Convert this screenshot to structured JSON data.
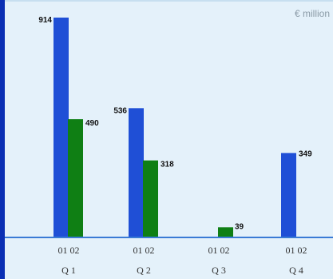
{
  "unit_label": "€ million",
  "chart_data": {
    "type": "bar",
    "categories": [
      "Q 1",
      "Q 2",
      "Q 3",
      "Q 4"
    ],
    "sub_labels": [
      "01 02",
      "01 02",
      "01 02",
      "01 02"
    ],
    "series": [
      {
        "values": [
          914,
          536,
          null,
          349
        ],
        "labels": [
          "914",
          "536",
          "",
          "349"
        ],
        "color": "#1f4fd6"
      },
      {
        "values": [
          490,
          318,
          39,
          null
        ],
        "labels": [
          "490",
          "318",
          "39",
          ""
        ],
        "color": "#0f7f14"
      }
    ],
    "ylim": [
      0,
      1000
    ],
    "grid": false,
    "legend": "none"
  },
  "colors": {
    "background": "#e4f1fa",
    "accent_bar": "#0a2fb4",
    "axis_line": "#3a7bd5"
  }
}
